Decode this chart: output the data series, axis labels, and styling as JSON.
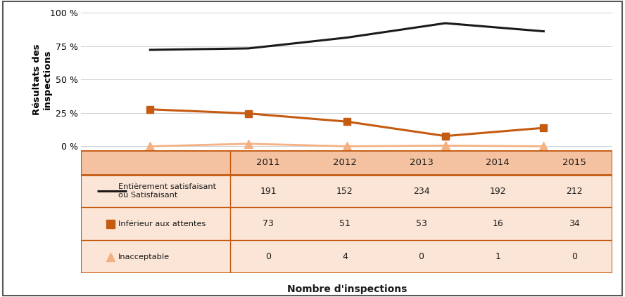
{
  "years": [
    2011,
    2012,
    2013,
    2014,
    2015
  ],
  "satisfaisant_pct": [
    72.3,
    73.4,
    81.5,
    92.3,
    86.2
  ],
  "inferieur_pct": [
    27.7,
    24.6,
    18.5,
    7.7,
    13.8
  ],
  "inacceptable_pct": [
    0.0,
    1.9,
    0.0,
    0.5,
    0.0
  ],
  "satisfaisant_counts": [
    191,
    152,
    234,
    192,
    212
  ],
  "inferieur_counts": [
    73,
    51,
    53,
    16,
    34
  ],
  "inacceptable_counts": [
    0,
    4,
    0,
    1,
    0
  ],
  "color_black": "#1a1a1a",
  "color_orange": "#C55A11",
  "color_peach": "#F4B183",
  "color_table_header_bg": "#F4C2A0",
  "color_table_row_bg": "#FBE5D6",
  "color_table_border": "#C55A11",
  "color_outer_border": "#595959",
  "color_grid": "#d0d0d0",
  "ylabel": "Résultats des\ninspections",
  "xlabel": "Nombre d'inspections",
  "yticks": [
    0,
    25,
    50,
    75,
    100
  ],
  "ytick_labels": [
    "0 %",
    "25 %",
    "50 %",
    "75 %",
    "100 %"
  ],
  "legend_labels": [
    "Entièrement satisfaisant\nou Satisfaisant",
    "Inférieur aux attentes",
    "Inacceptable"
  ],
  "figsize": [
    8.88,
    4.23
  ],
  "dpi": 100
}
